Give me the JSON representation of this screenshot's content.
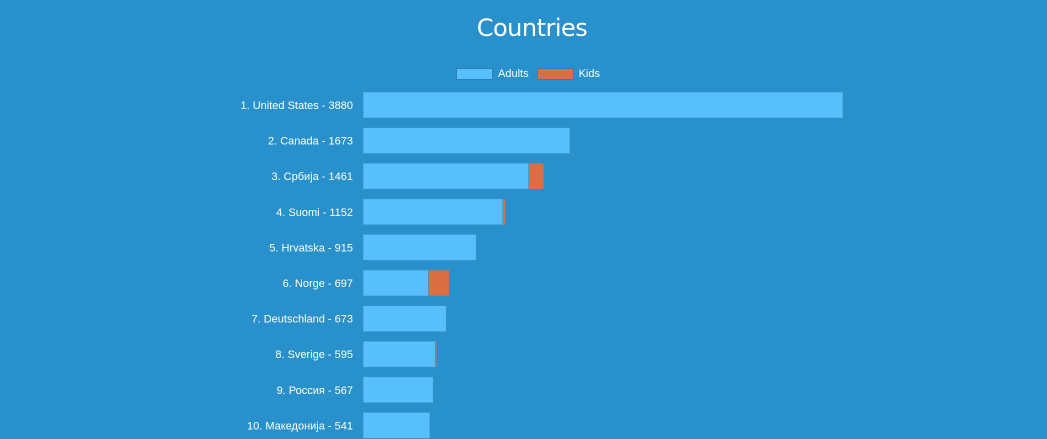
{
  "chart_data": {
    "type": "bar",
    "orientation": "horizontal",
    "stacked": true,
    "title": "Countries",
    "legend_position": "top",
    "series": [
      {
        "name": "Adults",
        "color": "#56bffc",
        "values": [
          3880,
          1673,
          1340,
          1130,
          915,
          530,
          673,
          585,
          567,
          541
        ]
      },
      {
        "name": "Kids",
        "color": "#db6e42",
        "values": [
          0,
          0,
          121,
          22,
          0,
          167,
          0,
          10,
          0,
          0
        ]
      }
    ],
    "categories": [
      "1. United States - 3880",
      "2. Canada - 1673",
      "3. Србија - 1461",
      "4. Suomi - 1152",
      "5. Hrvatska - 915",
      "6. Norge - 697",
      "7. Deutschland - 673",
      "8. Sverige - 595",
      "9. Россия - 567",
      "10. Македонија - 541"
    ],
    "xlim": [
      0,
      3880
    ],
    "grid": false
  }
}
